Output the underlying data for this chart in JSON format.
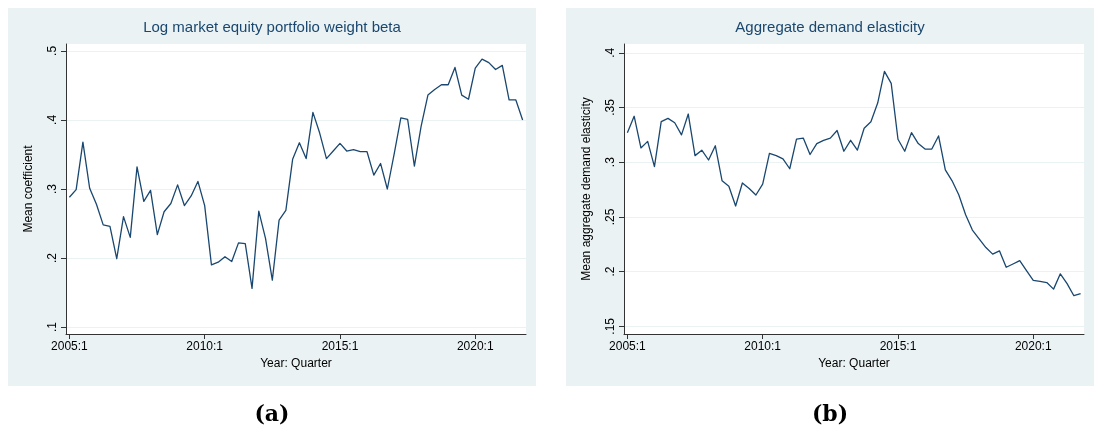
{
  "chart_data": [
    {
      "type": "line",
      "title": "Log market equity portfolio weight beta",
      "xlabel": "Year: Quarter",
      "ylabel": "Mean coefficient",
      "annotations": [
        "(a)"
      ],
      "categories": [
        "2005:1",
        null,
        null,
        null,
        null,
        null,
        null,
        null,
        null,
        null,
        null,
        null,
        null,
        null,
        null,
        null,
        null,
        null,
        null,
        null,
        "2010:1",
        null,
        null,
        null,
        null,
        null,
        null,
        null,
        null,
        null,
        null,
        null,
        null,
        null,
        null,
        null,
        null,
        null,
        null,
        null,
        "2015:1",
        null,
        null,
        null,
        null,
        null,
        null,
        null,
        null,
        null,
        null,
        null,
        null,
        null,
        null,
        null,
        null,
        null,
        null,
        null,
        "2020:1",
        null,
        null,
        null,
        null,
        null,
        null,
        null
      ],
      "series": [
        {
          "color": "#1a476f",
          "values": [
            0.288,
            0.299,
            0.368,
            0.301,
            0.278,
            0.248,
            0.246,
            0.199,
            0.26,
            0.23,
            0.332,
            0.282,
            0.298,
            0.234,
            0.267,
            0.279,
            0.306,
            0.276,
            0.29,
            0.311,
            0.276,
            0.19,
            0.194,
            0.202,
            0.195,
            0.222,
            0.221,
            0.156,
            0.268,
            0.228,
            0.168,
            0.255,
            0.269,
            0.343,
            0.367,
            0.344,
            0.411,
            0.381,
            0.344,
            0.355,
            0.366,
            0.355,
            0.357,
            0.354,
            0.354,
            0.32,
            0.337,
            0.3,
            0.35,
            0.403,
            0.401,
            0.333,
            0.391,
            0.436,
            0.444,
            0.451,
            0.451,
            0.476,
            0.436,
            0.43,
            0.475,
            0.488,
            0.483,
            0.473,
            0.479,
            0.429,
            0.429,
            0.4
          ]
        }
      ],
      "ylim": [
        0.09,
        0.51
      ],
      "yticks": [
        {
          "value": 0.1,
          "label": ".1"
        },
        {
          "value": 0.2,
          "label": ".2"
        },
        {
          "value": 0.3,
          "label": ".3"
        },
        {
          "value": 0.4,
          "label": ".4"
        },
        {
          "value": 0.5,
          "label": ".5"
        }
      ],
      "grid": "y",
      "marker": "none",
      "line_style": "solid"
    },
    {
      "type": "line",
      "title": "Aggregate demand elasticity",
      "xlabel": "Year: Quarter",
      "ylabel": "Mean aggregate demand elasticity",
      "annotations": [
        "(b)"
      ],
      "categories": [
        "2005:1",
        null,
        null,
        null,
        null,
        null,
        null,
        null,
        null,
        null,
        null,
        null,
        null,
        null,
        null,
        null,
        null,
        null,
        null,
        null,
        "2010:1",
        null,
        null,
        null,
        null,
        null,
        null,
        null,
        null,
        null,
        null,
        null,
        null,
        null,
        null,
        null,
        null,
        null,
        null,
        null,
        "2015:1",
        null,
        null,
        null,
        null,
        null,
        null,
        null,
        null,
        null,
        null,
        null,
        null,
        null,
        null,
        null,
        null,
        null,
        null,
        null,
        "2020:1",
        null,
        null,
        null,
        null,
        null,
        null,
        null
      ],
      "series": [
        {
          "color": "#1a476f",
          "values": [
            0.327,
            0.342,
            0.313,
            0.319,
            0.296,
            0.337,
            0.34,
            0.336,
            0.325,
            0.344,
            0.306,
            0.311,
            0.302,
            0.315,
            0.283,
            0.278,
            0.26,
            0.281,
            0.276,
            0.27,
            0.28,
            0.308,
            0.306,
            0.303,
            0.294,
            0.321,
            0.322,
            0.307,
            0.317,
            0.32,
            0.322,
            0.329,
            0.31,
            0.32,
            0.311,
            0.331,
            0.337,
            0.354,
            0.383,
            0.372,
            0.321,
            0.31,
            0.327,
            0.317,
            0.312,
            0.312,
            0.324,
            0.293,
            0.283,
            0.27,
            0.252,
            0.238,
            0.23,
            0.222,
            0.216,
            0.219,
            0.204,
            0.207,
            0.21,
            0.201,
            0.192,
            0.191,
            0.19,
            0.184,
            0.198,
            0.189,
            0.178,
            0.18
          ]
        }
      ],
      "ylim": [
        0.143,
        0.408
      ],
      "yticks": [
        {
          "value": 0.15,
          "label": ".15"
        },
        {
          "value": 0.2,
          "label": ".2"
        },
        {
          "value": 0.25,
          "label": ".25"
        },
        {
          "value": 0.3,
          "label": ".3"
        },
        {
          "value": 0.35,
          "label": ".35"
        },
        {
          "value": 0.4,
          "label": ".4"
        }
      ],
      "grid": "y",
      "marker": "none",
      "line_style": "solid"
    }
  ]
}
